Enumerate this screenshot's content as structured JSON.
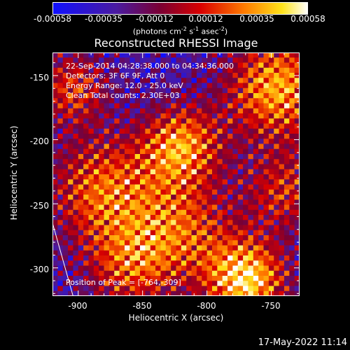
{
  "colorbar": {
    "ticks": [
      "-0.00058",
      "-0.00035",
      "-0.00012",
      "0.00012",
      "0.00035",
      "0.00058"
    ],
    "units_label": "(photons cm",
    "units_sup1": "-2",
    "units_mid": " s",
    "units_sup2": "-1",
    "units_end": " asec",
    "units_sup3": "-2",
    "units_close": ")"
  },
  "chart_data": {
    "type": "heatmap",
    "title": "Reconstructed RHESSI Image",
    "xlabel": "Heliocentric X (arcsec)",
    "ylabel": "Heliocentric Y (arcsec)",
    "xlim": [
      -920,
      -728
    ],
    "ylim": [
      -322,
      -132
    ],
    "x_ticks": [
      -900,
      -850,
      -800,
      -750
    ],
    "y_ticks": [
      -150,
      -200,
      -250,
      -300
    ],
    "colormap": "red-temperature (black-blue-purple-red-orange-yellow-white)",
    "value_range": [
      -0.00058,
      0.00058
    ],
    "peak_position": [
      -764,
      -309
    ],
    "limb_line": true,
    "annotations": [
      "22-Sep-2014 04:28:38.000 to 04:34:36.000",
      "Detectors: 3F 6F 9F, Att 0",
      "Energy Range: 12.0 - 25.0 keV",
      "Clean    Total counts: 2.30E+03"
    ],
    "peak_label": "Position of Peak = [-764,-309]"
  },
  "footer": {
    "timestamp": "17-May-2022 11:14"
  }
}
